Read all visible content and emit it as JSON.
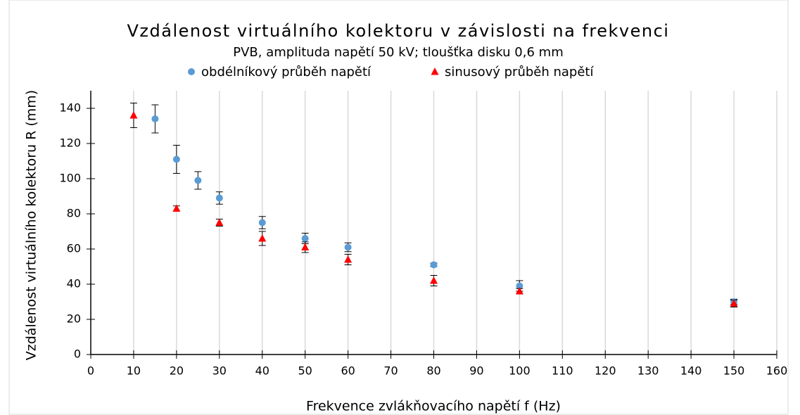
{
  "chart_data": {
    "type": "scatter",
    "title": "Vzdálenost virtuálního kolektoru v závislosti na frekvenci",
    "subtitle": "PVB, amplituda napětí 50 kV; tloušťka disku 0,6 mm",
    "x_label": "Frekvence zvlákňovacího napětí f (Hz)",
    "y_label": "Vzdálenost virtuálního kolektoru R (mm)",
    "xlim": [
      0,
      160
    ],
    "xticks": [
      0,
      10,
      20,
      30,
      40,
      50,
      60,
      70,
      80,
      90,
      100,
      110,
      120,
      130,
      140,
      150,
      160
    ],
    "ylim": [
      0,
      150
    ],
    "yticks": [
      0,
      20,
      40,
      60,
      80,
      100,
      120,
      140
    ],
    "grid": true,
    "legend": "top",
    "series": [
      {
        "name": "obdélníkový průběh napětí",
        "color": "#5b9bd5",
        "marker": "circle",
        "x": [
          15,
          20,
          25,
          30,
          40,
          50,
          60,
          80,
          100,
          150
        ],
        "values": [
          134,
          111,
          99,
          89,
          75,
          66,
          61,
          51,
          39,
          30
        ],
        "errors": [
          8,
          8,
          5,
          3.5,
          3.5,
          3,
          2.5,
          1,
          3,
          1.5
        ]
      },
      {
        "name": "sinusový průběh napětí",
        "color": "#ff0000",
        "marker": "triangle",
        "x": [
          10,
          20,
          30,
          40,
          50,
          60,
          80,
          100,
          150
        ],
        "values": [
          136,
          83,
          75,
          66,
          61,
          54,
          42,
          36,
          29
        ],
        "errors": [
          7,
          1.5,
          2,
          4,
          3,
          3,
          3,
          1.5,
          2
        ]
      }
    ]
  }
}
